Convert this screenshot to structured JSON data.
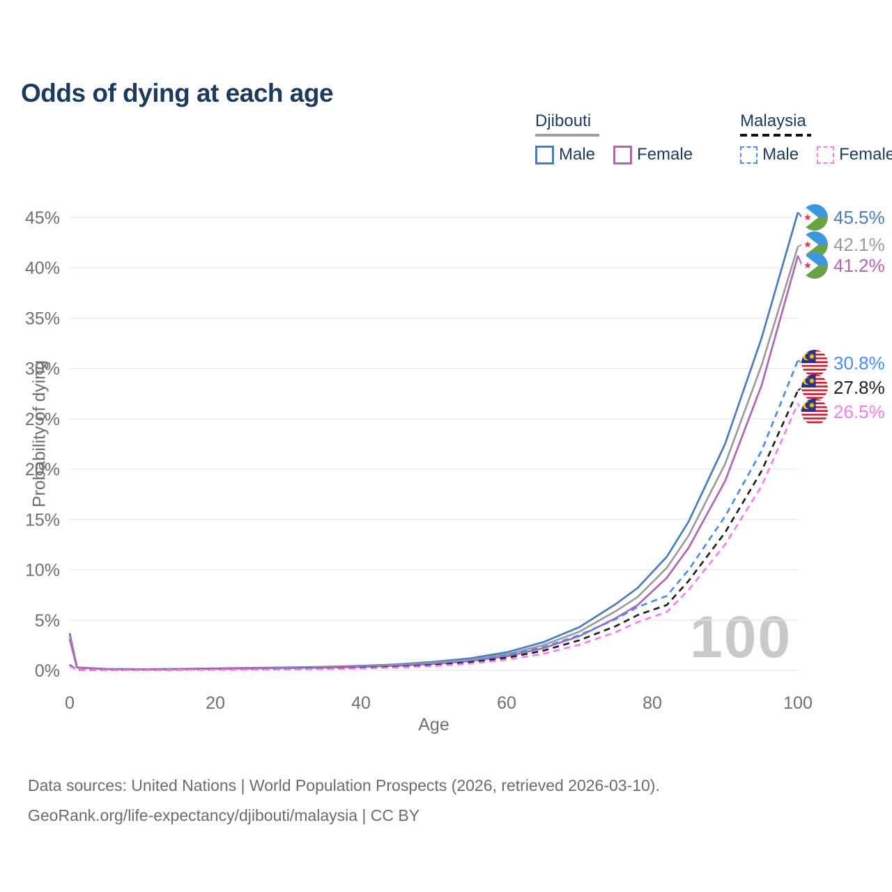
{
  "title": "Odds of dying at each age",
  "legend": {
    "groups": [
      {
        "country": "Djibouti",
        "line_style": "solid",
        "items": [
          {
            "label": "Male",
            "color": "#4a7bbd"
          },
          {
            "label": "Female",
            "color": "#b066b0"
          }
        ]
      },
      {
        "country": "Malaysia",
        "line_style": "dashed",
        "items": [
          {
            "label": "Male",
            "color": "#4b8cf0"
          },
          {
            "label": "Female",
            "color": "#fb7de6"
          }
        ]
      }
    ]
  },
  "chart_data": {
    "type": "line",
    "title": "Odds of dying at each age",
    "xlabel": "Age",
    "ylabel": "Probability of dying",
    "xlim": [
      0,
      100
    ],
    "ylim_percent": [
      0,
      45
    ],
    "grid": "horizontal",
    "legend_position": "top-right",
    "watermark": "100",
    "x_ticks": [
      {
        "value": 0,
        "label": "0"
      },
      {
        "value": 20,
        "label": "20"
      },
      {
        "value": 40,
        "label": "40"
      },
      {
        "value": 60,
        "label": "60"
      },
      {
        "value": 80,
        "label": "80"
      },
      {
        "value": 100,
        "label": "100"
      }
    ],
    "y_ticks": [
      {
        "value": 0,
        "label": "0%"
      },
      {
        "value": 5,
        "label": "5%"
      },
      {
        "value": 10,
        "label": "10%"
      },
      {
        "value": 15,
        "label": "15%"
      },
      {
        "value": 20,
        "label": "20%"
      },
      {
        "value": 25,
        "label": "25%"
      },
      {
        "value": 30,
        "label": "30%"
      },
      {
        "value": 35,
        "label": "35%"
      },
      {
        "value": 40,
        "label": "40%"
      },
      {
        "value": 45,
        "label": "45%"
      }
    ],
    "ages": [
      0,
      1,
      5,
      10,
      15,
      20,
      25,
      30,
      35,
      40,
      45,
      50,
      55,
      60,
      65,
      70,
      75,
      78,
      82,
      85,
      90,
      95,
      100
    ],
    "series": [
      {
        "id": "djibouti-male",
        "name": "Djibouti Male",
        "country": "Djibouti",
        "sex": "Male",
        "style": "solid",
        "color": "#4a7bbd",
        "label_color": "#4a7bbd",
        "flag": "djibouti",
        "end_label": "45.5%",
        "values": [
          3.7,
          0.3,
          0.15,
          0.12,
          0.15,
          0.2,
          0.25,
          0.3,
          0.36,
          0.45,
          0.6,
          0.85,
          1.2,
          1.8,
          2.8,
          4.3,
          6.6,
          8.2,
          11.3,
          14.8,
          22.5,
          33.0,
          45.5
        ]
      },
      {
        "id": "djibouti-both",
        "name": "Djibouti Both sexes",
        "country": "Djibouti",
        "sex": "Both sexes",
        "style": "solid",
        "color": "#9b9b9b",
        "label_color": "#9b9b9b",
        "flag": "djibouti",
        "end_label": "42.1%",
        "values": [
          3.4,
          0.28,
          0.13,
          0.11,
          0.13,
          0.17,
          0.22,
          0.26,
          0.31,
          0.4,
          0.53,
          0.75,
          1.05,
          1.6,
          2.5,
          3.85,
          5.9,
          7.3,
          10.2,
          13.4,
          20.5,
          30.3,
          42.1
        ]
      },
      {
        "id": "djibouti-female",
        "name": "Djibouti Female",
        "country": "Djibouti",
        "sex": "Female",
        "style": "solid",
        "color": "#b066b0",
        "label_color": "#b066b0",
        "flag": "djibouti",
        "end_label": "41.2%",
        "values": [
          3.1,
          0.26,
          0.12,
          0.1,
          0.12,
          0.15,
          0.19,
          0.23,
          0.27,
          0.35,
          0.46,
          0.65,
          0.92,
          1.4,
          2.2,
          3.4,
          5.2,
          6.5,
          9.2,
          12.2,
          18.8,
          28.3,
          41.2
        ]
      },
      {
        "id": "malaysia-male",
        "name": "Malaysia Male",
        "country": "Malaysia",
        "sex": "Male",
        "style": "dashed",
        "color": "#4b8cf0",
        "label_color": "#4b8cf0",
        "flag": "malaysia",
        "end_label": "30.8%",
        "values": [
          0.55,
          0.05,
          0.03,
          0.03,
          0.06,
          0.1,
          0.12,
          0.15,
          0.2,
          0.28,
          0.42,
          0.62,
          0.95,
          1.5,
          2.3,
          3.5,
          5.1,
          6.3,
          7.4,
          10.0,
          15.3,
          21.8,
          30.8
        ]
      },
      {
        "id": "malaysia-both",
        "name": "Malaysia Both sexes",
        "country": "Malaysia",
        "sex": "Both sexes",
        "style": "dashed",
        "color": "#1f1f1f",
        "label_color": "#1f1f1f",
        "flag": "malaysia",
        "end_label": "27.8%",
        "values": [
          0.5,
          0.045,
          0.025,
          0.025,
          0.05,
          0.08,
          0.1,
          0.12,
          0.16,
          0.23,
          0.34,
          0.52,
          0.8,
          1.25,
          1.95,
          3.0,
          4.4,
          5.5,
          6.5,
          8.9,
          13.7,
          19.8,
          27.8
        ]
      },
      {
        "id": "malaysia-female",
        "name": "Malaysia Female",
        "country": "Malaysia",
        "sex": "Female",
        "style": "dashed",
        "color": "#fb7de6",
        "label_color": "#fb7de6",
        "flag": "malaysia",
        "end_label": "26.5%",
        "values": [
          0.45,
          0.04,
          0.02,
          0.02,
          0.04,
          0.06,
          0.08,
          0.1,
          0.13,
          0.19,
          0.28,
          0.43,
          0.67,
          1.05,
          1.65,
          2.55,
          3.8,
          4.8,
          5.8,
          8.0,
          12.5,
          18.3,
          26.5
        ]
      }
    ]
  },
  "footer": {
    "line1": "Data sources: United Nations | World Population Prospects (2026, retrieved 2026-03-10).",
    "line2": "GeoRank.org/life-expectancy/djibouti/malaysia | CC BY"
  }
}
